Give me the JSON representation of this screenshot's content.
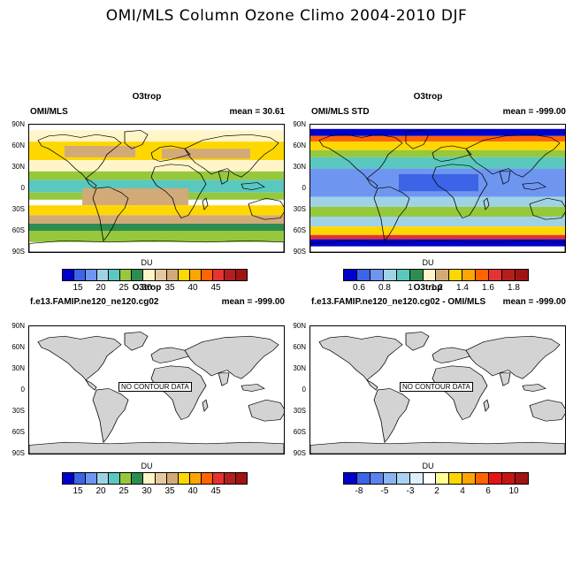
{
  "figure": {
    "suptitle": "OMI/MLS Column Ozone Climo 2004-2010 DJF"
  },
  "lat_labels": [
    "90N",
    "60N",
    "30N",
    "0",
    "30S",
    "60S",
    "90S"
  ],
  "palette_a": [
    "#0000cd",
    "#3c64e6",
    "#6e96f0",
    "#a0d2e6",
    "#5ac8be",
    "#96c83c",
    "#2d8c50",
    "#fff5c8",
    "#e6c8a0",
    "#d2aa78",
    "#ffd700",
    "#ffa500",
    "#ff6400",
    "#e63232",
    "#b41e1e",
    "#a01414"
  ],
  "palette_b": [
    "#0000cd",
    "#3c64e6",
    "#6e96f0",
    "#a0d2e6",
    "#5ac8be",
    "#2d8c50",
    "#fff5c8",
    "#d2aa78",
    "#ffd700",
    "#ffa500",
    "#ff6400",
    "#e63232",
    "#b41e1e",
    "#a01414"
  ],
  "palette_c": [
    "#0000cd",
    "#3c64e6",
    "#5a82f0",
    "#8cb4f0",
    "#aad2f0",
    "#dceffa",
    "#ffffff",
    "#ffff96",
    "#ffd700",
    "#ffa500",
    "#ff6400",
    "#e61414",
    "#c81414",
    "#a01414"
  ],
  "panels": [
    {
      "title": "O3trop",
      "left_label": "OMI/MLS",
      "right_label": "mean =  30.61",
      "colorbar_title": "DU",
      "colorbar_labels": [
        "15",
        "20",
        "25",
        "30",
        "35",
        "40",
        "45"
      ],
      "no_data_label": ""
    },
    {
      "title": "O3trop",
      "left_label": "OMI/MLS STD",
      "right_label": "mean = -999.00",
      "colorbar_title": "DU",
      "colorbar_labels": [
        "0.6",
        "0.8",
        "1",
        "1.2",
        "1.4",
        "1.6",
        "1.8"
      ],
      "no_data_label": ""
    },
    {
      "title": "O3trop",
      "left_label": "f.e13.FAMIP.ne120_ne120.cg02",
      "right_label": "mean = -999.00",
      "colorbar_title": "DU",
      "colorbar_labels": [
        "15",
        "20",
        "25",
        "30",
        "35",
        "40",
        "45"
      ],
      "no_data_label": "NO CONTOUR DATA"
    },
    {
      "title": "O3trop",
      "left_label": "f.e13.FAMIP.ne120_ne120.cg02 - OMI/MLS",
      "right_label": "mean = -999.00",
      "colorbar_title": "DU",
      "colorbar_labels": [
        "-8",
        "-5",
        "-3",
        "2",
        "4",
        "6",
        "10"
      ],
      "no_data_label": "NO CONTOUR DATA"
    }
  ]
}
